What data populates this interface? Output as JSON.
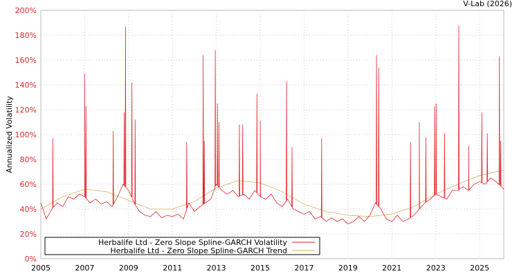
{
  "chart_data": {
    "type": "line",
    "title": "",
    "credit": "V-Lab (2026)",
    "xlabel": "",
    "ylabel": "Annualized Volatility",
    "xlim": [
      2005,
      2026.1
    ],
    "ylim": [
      0,
      200
    ],
    "yticks": [
      "0%",
      "20%",
      "40%",
      "60%",
      "80%",
      "100%",
      "120%",
      "140%",
      "160%",
      "180%",
      "200%"
    ],
    "xticks": [
      "2005",
      "2007",
      "2009",
      "2011",
      "2013",
      "2015",
      "2017",
      "2019",
      "2021",
      "2023",
      "2025"
    ],
    "grid": true,
    "legend_position": "bottom-left",
    "colors": {
      "volatility": "#e0252d",
      "trend": "#d4b25a",
      "ytick": "#e0252d"
    },
    "series": [
      {
        "name": "Herbalife Ltd - Zero Slope Spline-GARCH Volatility",
        "points": [
          [
            2005.0,
            45
          ],
          [
            2005.25,
            32
          ],
          [
            2005.5,
            40
          ],
          [
            2005.75,
            45
          ],
          [
            2006,
            42
          ],
          [
            2006.25,
            50
          ],
          [
            2006.5,
            48
          ],
          [
            2006.75,
            52
          ],
          [
            2007,
            50
          ],
          [
            2007.25,
            45
          ],
          [
            2007.5,
            48
          ],
          [
            2007.75,
            44
          ],
          [
            2008,
            46
          ],
          [
            2008.25,
            42
          ],
          [
            2008.5,
            50
          ],
          [
            2008.75,
            60
          ],
          [
            2009,
            55
          ],
          [
            2009.25,
            45
          ],
          [
            2009.5,
            38
          ],
          [
            2009.75,
            35
          ],
          [
            2010,
            34
          ],
          [
            2010.25,
            38
          ],
          [
            2010.5,
            33
          ],
          [
            2010.75,
            35
          ],
          [
            2011,
            34
          ],
          [
            2011.25,
            36
          ],
          [
            2011.5,
            32
          ],
          [
            2011.75,
            45
          ],
          [
            2012,
            38
          ],
          [
            2012.25,
            42
          ],
          [
            2012.5,
            45
          ],
          [
            2012.75,
            48
          ],
          [
            2013,
            60
          ],
          [
            2013.25,
            55
          ],
          [
            2013.5,
            52
          ],
          [
            2013.75,
            55
          ],
          [
            2014,
            50
          ],
          [
            2014.25,
            52
          ],
          [
            2014.5,
            48
          ],
          [
            2014.75,
            55
          ],
          [
            2015,
            50
          ],
          [
            2015.25,
            48
          ],
          [
            2015.5,
            52
          ],
          [
            2015.75,
            45
          ],
          [
            2016,
            42
          ],
          [
            2016.25,
            48
          ],
          [
            2016.5,
            40
          ],
          [
            2016.75,
            38
          ],
          [
            2017,
            36
          ],
          [
            2017.25,
            38
          ],
          [
            2017.5,
            32
          ],
          [
            2017.75,
            34
          ],
          [
            2018,
            30
          ],
          [
            2018.25,
            33
          ],
          [
            2018.5,
            30
          ],
          [
            2018.75,
            32
          ],
          [
            2019,
            28
          ],
          [
            2019.25,
            30
          ],
          [
            2019.5,
            34
          ],
          [
            2019.75,
            30
          ],
          [
            2020,
            35
          ],
          [
            2020.25,
            45
          ],
          [
            2020.5,
            40
          ],
          [
            2020.75,
            32
          ],
          [
            2021,
            30
          ],
          [
            2021.25,
            35
          ],
          [
            2021.5,
            30
          ],
          [
            2021.75,
            32
          ],
          [
            2022,
            35
          ],
          [
            2022.25,
            40
          ],
          [
            2022.5,
            45
          ],
          [
            2022.75,
            48
          ],
          [
            2023,
            52
          ],
          [
            2023.25,
            50
          ],
          [
            2023.5,
            48
          ],
          [
            2023.75,
            55
          ],
          [
            2024,
            55
          ],
          [
            2024.25,
            58
          ],
          [
            2024.5,
            55
          ],
          [
            2024.75,
            60
          ],
          [
            2025,
            62
          ],
          [
            2025.25,
            60
          ],
          [
            2025.5,
            65
          ],
          [
            2025.75,
            62
          ],
          [
            2026,
            58
          ],
          [
            2026.1,
            56
          ]
        ],
        "spikes": [
          [
            2005.55,
            97
          ],
          [
            2007.0,
            149
          ],
          [
            2007.06,
            123
          ],
          [
            2008.3,
            103
          ],
          [
            2008.8,
            118
          ],
          [
            2008.86,
            187
          ],
          [
            2009.15,
            142
          ],
          [
            2009.3,
            112
          ],
          [
            2011.65,
            94
          ],
          [
            2012.4,
            164
          ],
          [
            2012.45,
            95
          ],
          [
            2012.95,
            168
          ],
          [
            2013.05,
            125
          ],
          [
            2013.12,
            110
          ],
          [
            2014.05,
            108
          ],
          [
            2014.2,
            108
          ],
          [
            2014.85,
            133
          ],
          [
            2015.0,
            111
          ],
          [
            2016.2,
            143
          ],
          [
            2016.45,
            90
          ],
          [
            2017.8,
            97
          ],
          [
            2020.3,
            164
          ],
          [
            2020.4,
            154
          ],
          [
            2021.85,
            94
          ],
          [
            2022.25,
            110
          ],
          [
            2022.55,
            98
          ],
          [
            2022.95,
            123
          ],
          [
            2023.02,
            125
          ],
          [
            2023.4,
            101
          ],
          [
            2024.05,
            188
          ],
          [
            2024.5,
            91
          ],
          [
            2025.1,
            118
          ],
          [
            2025.35,
            101
          ],
          [
            2025.9,
            163
          ],
          [
            2025.96,
            95
          ]
        ]
      },
      {
        "name": "Herbalife Ltd - Zero Slope Spline-GARCH Trend",
        "points": [
          [
            2005,
            40
          ],
          [
            2006,
            50
          ],
          [
            2007,
            56
          ],
          [
            2008,
            54
          ],
          [
            2009,
            47
          ],
          [
            2010,
            40
          ],
          [
            2011,
            40
          ],
          [
            2012,
            46
          ],
          [
            2013,
            57
          ],
          [
            2014,
            63
          ],
          [
            2015,
            61
          ],
          [
            2016,
            54
          ],
          [
            2017,
            44
          ],
          [
            2018,
            38
          ],
          [
            2019,
            35
          ],
          [
            2020,
            34
          ],
          [
            2021,
            36
          ],
          [
            2022,
            42
          ],
          [
            2023,
            52
          ],
          [
            2024,
            60
          ],
          [
            2025,
            67
          ],
          [
            2026,
            71
          ],
          [
            2026.1,
            71
          ]
        ]
      }
    ]
  }
}
